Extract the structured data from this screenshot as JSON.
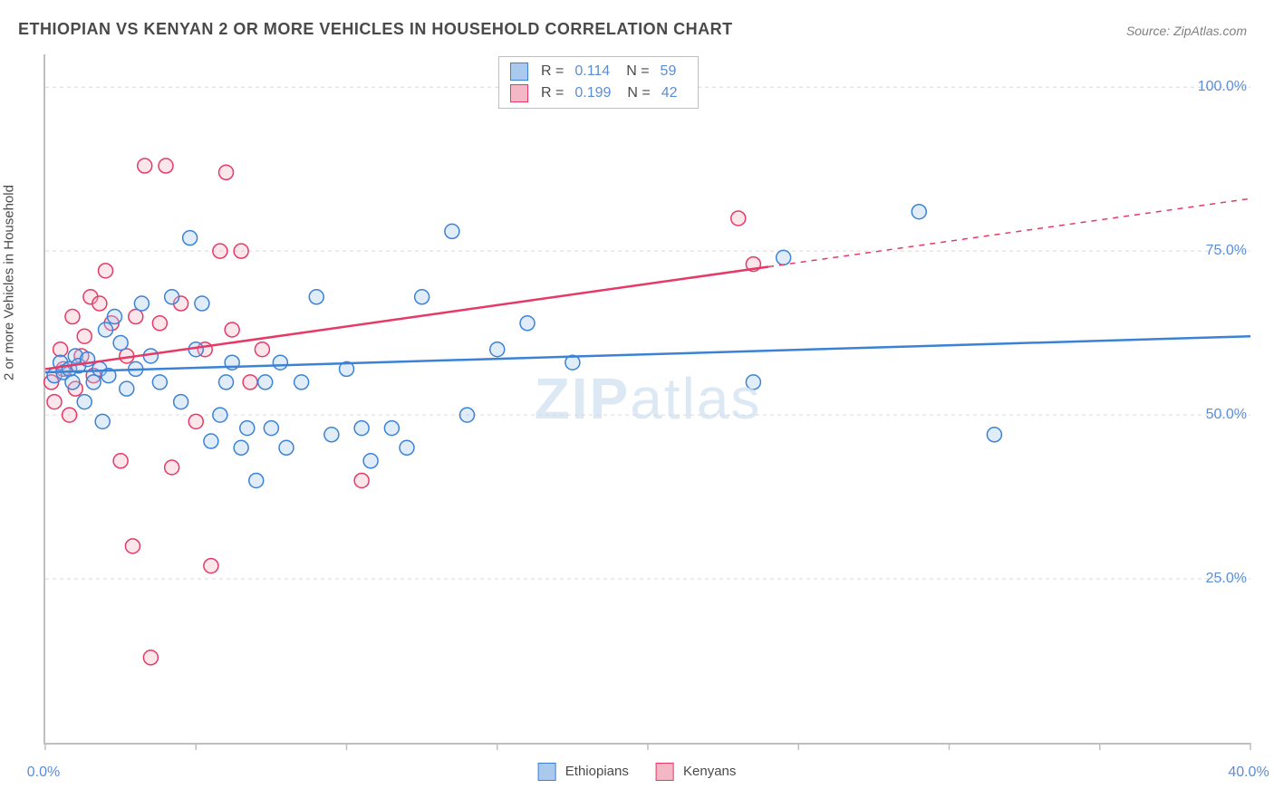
{
  "title": "ETHIOPIAN VS KENYAN 2 OR MORE VEHICLES IN HOUSEHOLD CORRELATION CHART",
  "source": "Source: ZipAtlas.com",
  "y_axis_label": "2 or more Vehicles in Household",
  "watermark": "ZIPatlas",
  "chart": {
    "type": "scatter",
    "background_color": "#ffffff",
    "grid_color": "#d9d9d9",
    "grid_dash": "4,4",
    "axis_color": "#bfbfbf",
    "tick_color": "#5b8dd6",
    "label_color": "#4a4a4a",
    "title_color": "#4a4a4a",
    "title_fontsize": 18,
    "tick_fontsize": 16,
    "label_fontsize": 15,
    "xlim": [
      0,
      40
    ],
    "ylim": [
      0,
      105
    ],
    "x_ticks": [
      0,
      5,
      10,
      15,
      20,
      25,
      30,
      35,
      40
    ],
    "x_tick_labels": {
      "0": "0.0%",
      "40": "40.0%"
    },
    "y_ticks": [
      25,
      50,
      75,
      100
    ],
    "y_tick_labels": {
      "25": "25.0%",
      "50": "50.0%",
      "75": "75.0%",
      "100": "100.0%"
    },
    "marker_radius": 8,
    "marker_stroke_width": 1.5,
    "marker_fill_opacity": 0.35,
    "line_width": 2.5,
    "dash_pattern": "6,6"
  },
  "series": [
    {
      "name": "Ethiopians",
      "stroke": "#3b82d6",
      "fill": "#a9c9ed",
      "R": "0.114",
      "N": "59",
      "trend": {
        "y_at_x0": 56.5,
        "y_at_x40": 62,
        "solid_until_x": 40
      },
      "points": [
        [
          0.3,
          56
        ],
        [
          0.5,
          58
        ],
        [
          0.6,
          56.5
        ],
        [
          0.8,
          57
        ],
        [
          0.9,
          55
        ],
        [
          1.0,
          59
        ],
        [
          1.1,
          57.5
        ],
        [
          1.3,
          52
        ],
        [
          1.4,
          58.5
        ],
        [
          1.6,
          55
        ],
        [
          1.8,
          57
        ],
        [
          1.9,
          49
        ],
        [
          2.0,
          63
        ],
        [
          2.1,
          56
        ],
        [
          2.3,
          65
        ],
        [
          2.5,
          61
        ],
        [
          2.7,
          54
        ],
        [
          3.0,
          57
        ],
        [
          3.2,
          67
        ],
        [
          3.5,
          59
        ],
        [
          3.8,
          55
        ],
        [
          4.2,
          68
        ],
        [
          4.5,
          52
        ],
        [
          4.8,
          77
        ],
        [
          5.0,
          60
        ],
        [
          5.2,
          67
        ],
        [
          5.5,
          46
        ],
        [
          5.8,
          50
        ],
        [
          6.0,
          55
        ],
        [
          6.2,
          58
        ],
        [
          6.5,
          45
        ],
        [
          6.7,
          48
        ],
        [
          7.0,
          40
        ],
        [
          7.3,
          55
        ],
        [
          7.5,
          48
        ],
        [
          7.8,
          58
        ],
        [
          8.0,
          45
        ],
        [
          8.5,
          55
        ],
        [
          9.0,
          68
        ],
        [
          9.5,
          47
        ],
        [
          10.0,
          57
        ],
        [
          10.5,
          48
        ],
        [
          10.8,
          43
        ],
        [
          11.5,
          48
        ],
        [
          12.0,
          45
        ],
        [
          12.5,
          68
        ],
        [
          13.5,
          78
        ],
        [
          14.0,
          50
        ],
        [
          15.0,
          60
        ],
        [
          16.0,
          64
        ],
        [
          17.5,
          58
        ],
        [
          23.5,
          55
        ],
        [
          24.5,
          74
        ],
        [
          29.0,
          81
        ],
        [
          31.5,
          47
        ]
      ]
    },
    {
      "name": "Kenyans",
      "stroke": "#e63965",
      "fill": "#f4b7c6",
      "R": "0.199",
      "N": "42",
      "trend": {
        "y_at_x0": 57,
        "y_at_x40": 83,
        "solid_until_x": 24
      },
      "points": [
        [
          0.2,
          55
        ],
        [
          0.3,
          52
        ],
        [
          0.5,
          60
        ],
        [
          0.6,
          57
        ],
        [
          0.8,
          50
        ],
        [
          0.9,
          65
        ],
        [
          1.0,
          54
        ],
        [
          1.2,
          59
        ],
        [
          1.3,
          62
        ],
        [
          1.5,
          68
        ],
        [
          1.6,
          56
        ],
        [
          1.8,
          67
        ],
        [
          2.0,
          72
        ],
        [
          2.2,
          64
        ],
        [
          2.5,
          43
        ],
        [
          2.7,
          59
        ],
        [
          2.9,
          30
        ],
        [
          3.0,
          65
        ],
        [
          3.3,
          88
        ],
        [
          3.5,
          13
        ],
        [
          3.8,
          64
        ],
        [
          4.0,
          88
        ],
        [
          4.2,
          42
        ],
        [
          4.5,
          67
        ],
        [
          5.0,
          49
        ],
        [
          5.3,
          60
        ],
        [
          5.5,
          27
        ],
        [
          5.8,
          75
        ],
        [
          6.0,
          87
        ],
        [
          6.2,
          63
        ],
        [
          6.5,
          75
        ],
        [
          6.8,
          55
        ],
        [
          7.2,
          60
        ],
        [
          10.5,
          40
        ],
        [
          23.0,
          80
        ],
        [
          23.5,
          73
        ]
      ]
    }
  ],
  "legend": {
    "bottom_items": [
      "Ethiopians",
      "Kenyans"
    ],
    "top_R_label": "R =",
    "top_N_label": "N ="
  }
}
